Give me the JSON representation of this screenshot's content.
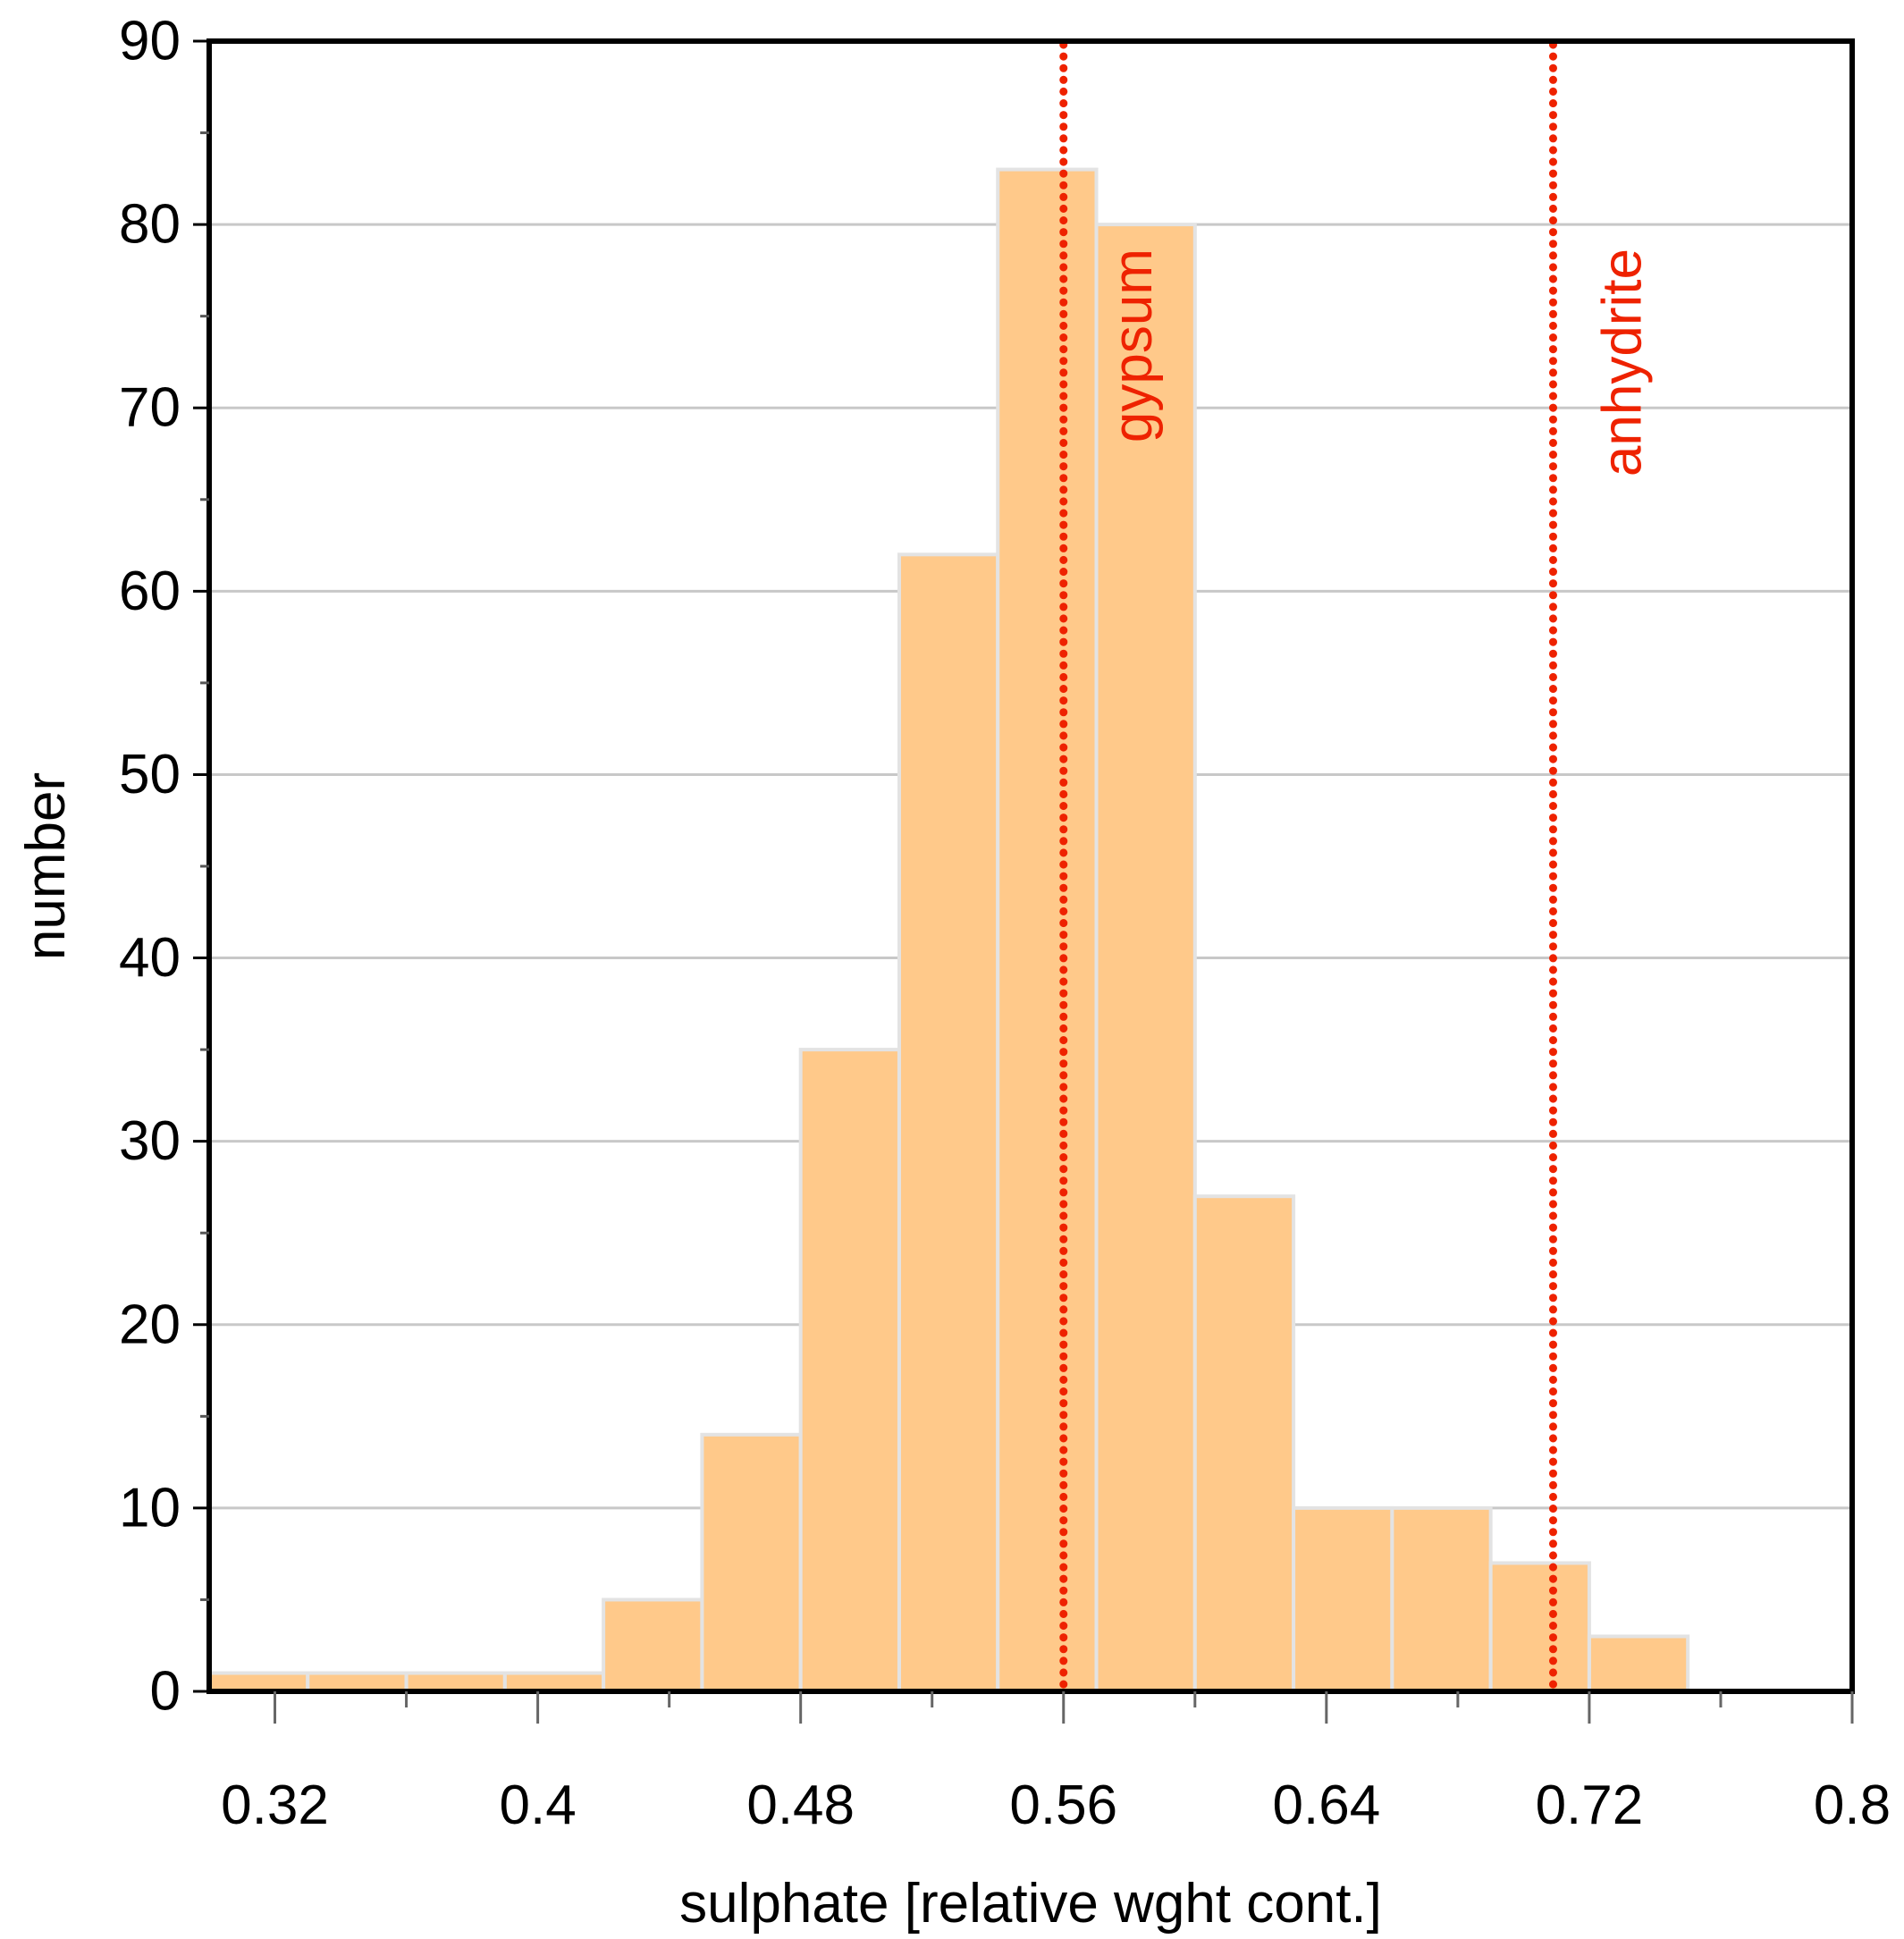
{
  "chart_data": {
    "type": "bar",
    "subtype": "histogram",
    "title": "",
    "xlabel": "sulphate [relative wght cont.]",
    "ylabel": "number",
    "xlim": [
      0.3,
      0.8
    ],
    "ylim": [
      0,
      90
    ],
    "x_ticks": [
      "0.32",
      "0.4",
      "0.48",
      "0.56",
      "0.64",
      "0.72",
      "0.8"
    ],
    "x_tick_values": [
      0.32,
      0.4,
      0.48,
      0.56,
      0.64,
      0.72,
      0.8
    ],
    "x_minor_tick_values": [
      0.36,
      0.44,
      0.52,
      0.6,
      0.68,
      0.76
    ],
    "y_ticks": [
      "0",
      "10",
      "20",
      "30",
      "40",
      "50",
      "60",
      "70",
      "80",
      "90"
    ],
    "y_tick_values": [
      0,
      10,
      20,
      30,
      40,
      50,
      60,
      70,
      80,
      90
    ],
    "y_minor_tick_values": [
      5,
      15,
      25,
      35,
      45,
      55,
      65,
      75,
      85
    ],
    "grid": "horizontal",
    "bin_edges": [
      0.3,
      0.33,
      0.36,
      0.39,
      0.42,
      0.45,
      0.48,
      0.51,
      0.54,
      0.57,
      0.6,
      0.63,
      0.66,
      0.69,
      0.72,
      0.75
    ],
    "values": [
      1,
      1,
      1,
      1,
      5,
      14,
      35,
      62,
      83,
      80,
      27,
      10,
      10,
      7,
      3
    ],
    "reference_lines": [
      {
        "label": "gypsum",
        "x": 0.56
      },
      {
        "label": "anhydrite",
        "x": 0.709
      }
    ],
    "colors": {
      "bar_fill": "#ffc98a",
      "bar_edge": "#e3e3e3",
      "reference_line": "#ee2200",
      "grid": "#c8c8c8",
      "axis": "#000000"
    }
  }
}
